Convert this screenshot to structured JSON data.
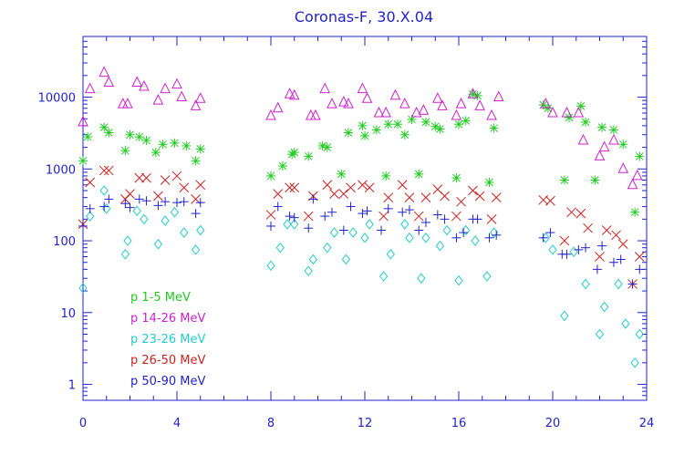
{
  "chart_data": {
    "type": "scatter",
    "title": "Coronas-F, 30.X.04",
    "xlabel": "",
    "ylabel": "",
    "xlim": [
      0,
      24
    ],
    "ylim": [
      0.6,
      70000
    ],
    "yscale": "log",
    "grid": false,
    "legend_placement": "bottom-left inside",
    "x_ticks": [
      0,
      4,
      8,
      12,
      16,
      20,
      24
    ],
    "y_ticks": [
      1,
      10,
      100,
      1000,
      10000
    ],
    "y_tick_labels": [
      "1",
      "10",
      "100",
      "1000",
      "10000"
    ],
    "axis_color": "#2222cc",
    "series": [
      {
        "name": "p  1-5 MeV",
        "marker": "asterisk",
        "color": "#22cc22",
        "points": [
          [
            0.0,
            1300
          ],
          [
            0.2,
            2800
          ],
          [
            0.9,
            3800
          ],
          [
            1.1,
            3200
          ],
          [
            1.8,
            1800
          ],
          [
            2.0,
            3000
          ],
          [
            2.4,
            2800
          ],
          [
            2.7,
            2500
          ],
          [
            3.1,
            1700
          ],
          [
            3.4,
            2200
          ],
          [
            3.9,
            2300
          ],
          [
            4.4,
            2100
          ],
          [
            4.8,
            1300
          ],
          [
            5.0,
            1900
          ],
          [
            8.0,
            800
          ],
          [
            8.5,
            1100
          ],
          [
            8.9,
            1600
          ],
          [
            9.0,
            1700
          ],
          [
            9.6,
            1500
          ],
          [
            10.2,
            2100
          ],
          [
            10.4,
            2000
          ],
          [
            11.0,
            850
          ],
          [
            11.3,
            3200
          ],
          [
            11.9,
            4000
          ],
          [
            12.0,
            2900
          ],
          [
            12.5,
            3500
          ],
          [
            12.9,
            800
          ],
          [
            13.0,
            4200
          ],
          [
            13.4,
            4200
          ],
          [
            13.7,
            3000
          ],
          [
            14.0,
            4900
          ],
          [
            14.3,
            850
          ],
          [
            14.6,
            4500
          ],
          [
            15.0,
            3900
          ],
          [
            15.2,
            3600
          ],
          [
            15.9,
            750
          ],
          [
            16.0,
            4200
          ],
          [
            16.3,
            4700
          ],
          [
            16.6,
            11000
          ],
          [
            16.8,
            10500
          ],
          [
            17.3,
            650
          ],
          [
            17.5,
            3700
          ],
          [
            19.6,
            7800
          ],
          [
            19.8,
            7000
          ],
          [
            20.5,
            700
          ],
          [
            20.7,
            5200
          ],
          [
            21.2,
            7500
          ],
          [
            21.4,
            4500
          ],
          [
            21.8,
            700
          ],
          [
            22.1,
            3800
          ],
          [
            22.6,
            3500
          ],
          [
            23.0,
            2200
          ],
          [
            23.5,
            250
          ],
          [
            23.7,
            1500
          ]
        ]
      },
      {
        "name": "p  14-26 MeV",
        "marker": "triangle",
        "color": "#cc22cc",
        "points": [
          [
            0.0,
            4500
          ],
          [
            0.3,
            13000
          ],
          [
            0.9,
            22000
          ],
          [
            1.1,
            16000
          ],
          [
            1.7,
            8000
          ],
          [
            1.9,
            8000
          ],
          [
            2.3,
            16000
          ],
          [
            2.6,
            14000
          ],
          [
            3.2,
            9000
          ],
          [
            3.5,
            13000
          ],
          [
            4.0,
            15000
          ],
          [
            4.2,
            10000
          ],
          [
            4.8,
            7500
          ],
          [
            5.0,
            9500
          ],
          [
            8.0,
            5500
          ],
          [
            8.3,
            7000
          ],
          [
            8.8,
            11000
          ],
          [
            9.0,
            10500
          ],
          [
            9.7,
            5500
          ],
          [
            9.9,
            5500
          ],
          [
            10.3,
            13000
          ],
          [
            10.6,
            8000
          ],
          [
            11.1,
            8500
          ],
          [
            11.3,
            8000
          ],
          [
            11.9,
            13000
          ],
          [
            12.1,
            9500
          ],
          [
            12.6,
            6000
          ],
          [
            12.9,
            6000
          ],
          [
            13.3,
            10500
          ],
          [
            13.7,
            8000
          ],
          [
            14.2,
            6000
          ],
          [
            14.5,
            6500
          ],
          [
            15.1,
            9500
          ],
          [
            15.3,
            7500
          ],
          [
            15.9,
            5500
          ],
          [
            16.1,
            8000
          ],
          [
            16.6,
            11000
          ],
          [
            16.9,
            7500
          ],
          [
            17.4,
            5500
          ],
          [
            17.7,
            10000
          ],
          [
            19.7,
            8000
          ],
          [
            20.0,
            6000
          ],
          [
            20.6,
            6000
          ],
          [
            21.1,
            6000
          ],
          [
            21.3,
            2500
          ],
          [
            22.0,
            1500
          ],
          [
            22.2,
            2000
          ],
          [
            22.6,
            2500
          ],
          [
            23.0,
            1000
          ],
          [
            23.4,
            600
          ],
          [
            23.6,
            800
          ]
        ]
      },
      {
        "name": "p  23-26 MeV",
        "marker": "diamond",
        "color": "#22cccc",
        "points": [
          [
            0.0,
            22
          ],
          [
            0.3,
            220
          ],
          [
            0.9,
            500
          ],
          [
            1.0,
            280
          ],
          [
            1.8,
            65
          ],
          [
            1.9,
            100
          ],
          [
            2.3,
            260
          ],
          [
            2.6,
            200
          ],
          [
            3.2,
            90
          ],
          [
            3.5,
            190
          ],
          [
            3.9,
            250
          ],
          [
            4.3,
            130
          ],
          [
            4.8,
            75
          ],
          [
            5.0,
            140
          ],
          [
            8.0,
            45
          ],
          [
            8.4,
            80
          ],
          [
            8.7,
            170
          ],
          [
            9.0,
            170
          ],
          [
            9.6,
            38
          ],
          [
            9.8,
            55
          ],
          [
            10.4,
            80
          ],
          [
            10.7,
            130
          ],
          [
            11.2,
            55
          ],
          [
            11.5,
            130
          ],
          [
            12.0,
            110
          ],
          [
            12.2,
            170
          ],
          [
            12.8,
            32
          ],
          [
            13.1,
            65
          ],
          [
            13.7,
            170
          ],
          [
            13.9,
            110
          ],
          [
            14.4,
            30
          ],
          [
            14.6,
            110
          ],
          [
            15.2,
            85
          ],
          [
            15.5,
            140
          ],
          [
            16.0,
            28
          ],
          [
            16.3,
            140
          ],
          [
            16.7,
            100
          ],
          [
            17.2,
            32
          ],
          [
            17.5,
            130
          ],
          [
            19.7,
            110
          ],
          [
            20.0,
            75
          ],
          [
            20.5,
            9
          ],
          [
            20.9,
            70
          ],
          [
            21.4,
            25
          ],
          [
            22.0,
            5
          ],
          [
            22.2,
            12
          ],
          [
            22.8,
            25
          ],
          [
            23.1,
            7
          ],
          [
            23.5,
            2
          ],
          [
            23.7,
            5
          ]
        ]
      },
      {
        "name": "p  26-50 MeV",
        "marker": "x",
        "color": "#cc2222",
        "points": [
          [
            0.0,
            170
          ],
          [
            0.3,
            650
          ],
          [
            0.9,
            950
          ],
          [
            1.1,
            950
          ],
          [
            1.8,
            380
          ],
          [
            2.0,
            450
          ],
          [
            2.4,
            750
          ],
          [
            2.7,
            750
          ],
          [
            3.2,
            420
          ],
          [
            3.5,
            700
          ],
          [
            4.0,
            800
          ],
          [
            4.3,
            550
          ],
          [
            4.8,
            380
          ],
          [
            5.0,
            600
          ],
          [
            8.0,
            230
          ],
          [
            8.3,
            450
          ],
          [
            8.8,
            550
          ],
          [
            9.0,
            550
          ],
          [
            9.6,
            220
          ],
          [
            9.8,
            420
          ],
          [
            10.4,
            600
          ],
          [
            10.7,
            450
          ],
          [
            11.1,
            450
          ],
          [
            11.4,
            550
          ],
          [
            11.9,
            600
          ],
          [
            12.2,
            550
          ],
          [
            12.8,
            220
          ],
          [
            13.0,
            400
          ],
          [
            13.6,
            600
          ],
          [
            13.9,
            400
          ],
          [
            14.3,
            220
          ],
          [
            14.6,
            400
          ],
          [
            15.1,
            520
          ],
          [
            15.4,
            420
          ],
          [
            15.9,
            220
          ],
          [
            16.1,
            350
          ],
          [
            16.6,
            500
          ],
          [
            16.9,
            420
          ],
          [
            17.4,
            200
          ],
          [
            17.6,
            400
          ],
          [
            19.6,
            370
          ],
          [
            19.9,
            360
          ],
          [
            20.5,
            100
          ],
          [
            20.8,
            250
          ],
          [
            21.2,
            240
          ],
          [
            21.5,
            150
          ],
          [
            22.0,
            60
          ],
          [
            22.3,
            140
          ],
          [
            22.7,
            120
          ],
          [
            23.0,
            90
          ],
          [
            23.4,
            25
          ],
          [
            23.7,
            60
          ]
        ]
      },
      {
        "name": "p  50-90 MeV",
        "marker": "plus",
        "color": "#2222cc",
        "points": [
          [
            0.0,
            160
          ],
          [
            0.3,
            280
          ],
          [
            0.9,
            300
          ],
          [
            1.1,
            380
          ],
          [
            1.8,
            330
          ],
          [
            2.0,
            290
          ],
          [
            2.4,
            380
          ],
          [
            2.7,
            360
          ],
          [
            3.2,
            310
          ],
          [
            3.5,
            350
          ],
          [
            4.0,
            340
          ],
          [
            4.3,
            350
          ],
          [
            4.8,
            240
          ],
          [
            5.0,
            340
          ],
          [
            8.0,
            160
          ],
          [
            8.3,
            300
          ],
          [
            8.8,
            220
          ],
          [
            9.0,
            210
          ],
          [
            9.6,
            150
          ],
          [
            9.8,
            380
          ],
          [
            10.3,
            220
          ],
          [
            10.6,
            250
          ],
          [
            11.1,
            140
          ],
          [
            11.4,
            300
          ],
          [
            11.9,
            240
          ],
          [
            12.1,
            260
          ],
          [
            12.7,
            140
          ],
          [
            13.0,
            280
          ],
          [
            13.6,
            250
          ],
          [
            13.9,
            270
          ],
          [
            14.3,
            140
          ],
          [
            14.6,
            180
          ],
          [
            15.1,
            230
          ],
          [
            15.4,
            200
          ],
          [
            15.9,
            110
          ],
          [
            16.2,
            130
          ],
          [
            16.6,
            200
          ],
          [
            16.8,
            200
          ],
          [
            17.3,
            110
          ],
          [
            17.6,
            120
          ],
          [
            19.6,
            110
          ],
          [
            19.9,
            130
          ],
          [
            20.4,
            65
          ],
          [
            20.6,
            65
          ],
          [
            21.1,
            75
          ],
          [
            21.4,
            80
          ],
          [
            21.9,
            40
          ],
          [
            22.1,
            85
          ],
          [
            22.6,
            50
          ],
          [
            22.9,
            55
          ],
          [
            23.4,
            25
          ],
          [
            23.7,
            40
          ]
        ]
      }
    ]
  }
}
